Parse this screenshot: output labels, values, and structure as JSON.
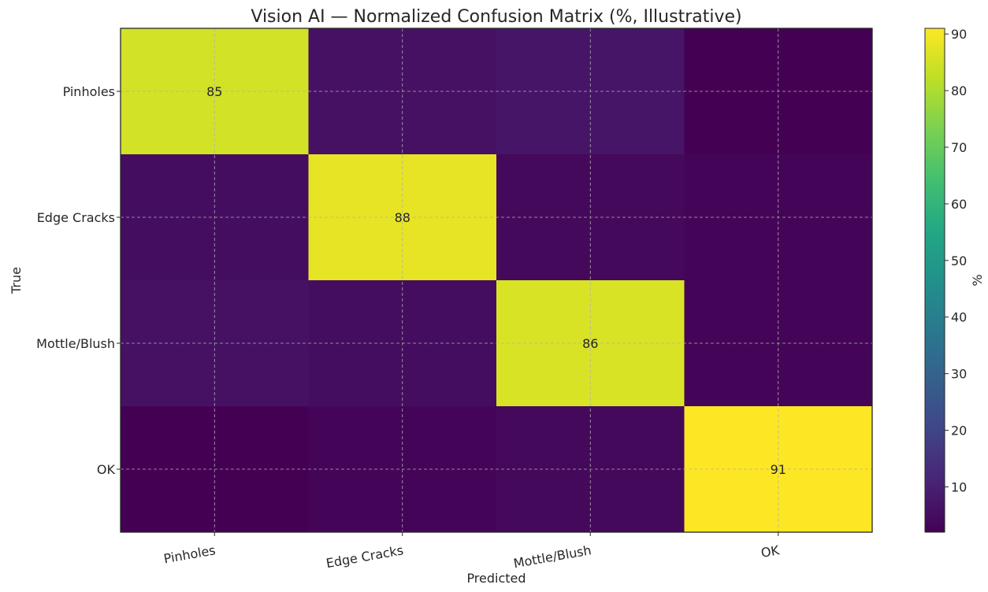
{
  "chart_data": {
    "type": "heatmap",
    "title": "Vision AI — Normalized Confusion Matrix (%, Illustrative)",
    "xlabel": "Predicted",
    "ylabel": "True",
    "x_categories": [
      "Pinholes",
      "Edge Cracks",
      "Mottle/Blush",
      "OK"
    ],
    "y_categories": [
      "Pinholes",
      "Edge Cracks",
      "Mottle/Blush",
      "OK"
    ],
    "values": [
      [
        85,
        6,
        7,
        2
      ],
      [
        5,
        88,
        4,
        3
      ],
      [
        6,
        5,
        86,
        3
      ],
      [
        2,
        3,
        4,
        91
      ]
    ],
    "colormap": "viridis",
    "colorbar": {
      "label": "%",
      "range": [
        2,
        91
      ],
      "ticks": [
        10,
        20,
        30,
        40,
        50,
        60,
        70,
        80,
        90
      ]
    },
    "grid": true
  }
}
